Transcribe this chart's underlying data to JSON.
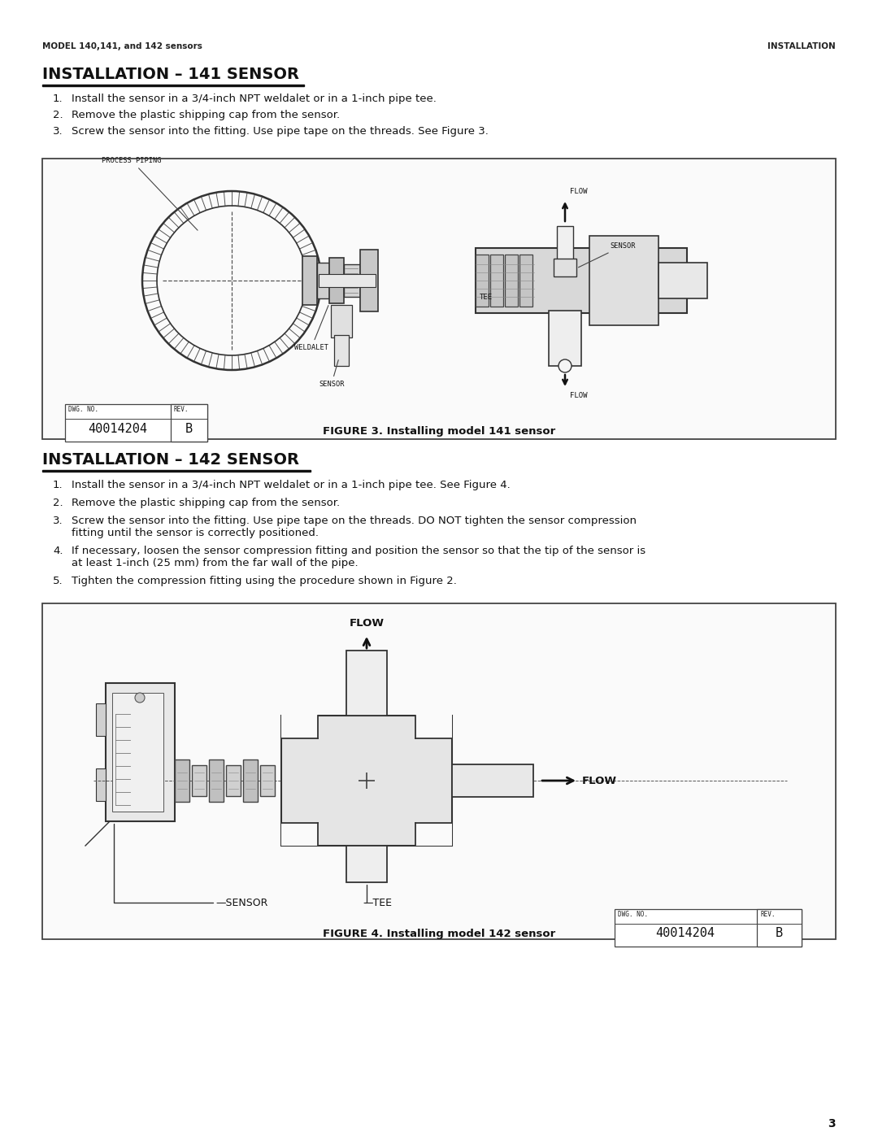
{
  "bg_color": "#ffffff",
  "header_left": "MODEL 140,141, and 142 sensors",
  "header_right": "INSTALLATION",
  "section1_title": "INSTALLATION – 141 SENSOR",
  "section1_items": [
    "Install the sensor in a 3/4-inch NPT weldalet or in a 1-inch pipe tee.",
    "Remove the plastic shipping cap from the sensor.",
    "Screw the sensor into the fitting. Use pipe tape on the threads. See Figure 3."
  ],
  "figure3_caption": "FIGURE 3. Installing model 141 sensor",
  "figure3_dwg": "40014204",
  "figure3_rev": "B",
  "section2_title": "INSTALLATION – 142 SENSOR",
  "section2_items": [
    "Install the sensor in a 3/4-inch NPT weldalet or in a 1-inch pipe tee. See Figure 4.",
    "Remove the plastic shipping cap from the sensor.",
    "Screw the sensor into the fitting. Use pipe tape on the threads. DO NOT tighten the sensor compression\nfitting until the sensor is correctly positioned.",
    "If necessary, loosen the sensor compression fitting and position the sensor so that the tip of the sensor is\nat least 1-inch (25 mm) from the far wall of the pipe.",
    "Tighten the compression fitting using the procedure shown in Figure 2."
  ],
  "figure4_caption": "FIGURE 4. Installing model 142 sensor",
  "figure4_dwg": "40014204",
  "figure4_rev": "B",
  "page_number": "3"
}
